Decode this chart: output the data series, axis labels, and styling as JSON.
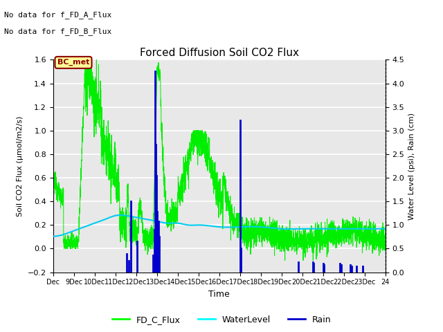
{
  "title": "Forced Diffusion Soil CO2 Flux",
  "xlabel": "Time",
  "ylabel_left": "Soil CO2 Flux (μmol/m2/s)",
  "ylabel_right": "Water Level (psi), Rain (cm)",
  "ylim_left": [
    -0.2,
    1.6
  ],
  "ylim_right": [
    0.0,
    4.5
  ],
  "yticks_left": [
    -0.2,
    0.0,
    0.2,
    0.4,
    0.6,
    0.8,
    1.0,
    1.2,
    1.4,
    1.6
  ],
  "yticks_right": [
    0.0,
    0.5,
    1.0,
    1.5,
    2.0,
    2.5,
    3.0,
    3.5,
    4.0,
    4.5
  ],
  "annotations": [
    "No data for f_FD_A_Flux",
    "No data for f_FD_B_Flux"
  ],
  "bc_met_label": "BC_met",
  "legend_labels": [
    "FD_C_Flux",
    "WaterLevel",
    "Rain"
  ],
  "legend_colors": [
    "#00ff00",
    "#00ffff",
    "#0000cc"
  ],
  "flux_color": "#00ee00",
  "water_color": "#00ccee",
  "rain_color": "#0000cc",
  "bg_color": "#e8e8e8",
  "bc_met_bg": "#ffff99",
  "bc_met_border": "#8b0000",
  "bc_met_text": "#8b0000",
  "n_points": 3000,
  "date_start": 8,
  "date_end": 24,
  "rain_positions": [
    11.55,
    11.65,
    11.75,
    12.05,
    12.82,
    12.86,
    12.9,
    12.94,
    12.98,
    13.02,
    13.08,
    13.12,
    17.0,
    17.05,
    19.82,
    20.5,
    20.55,
    21.0,
    21.05,
    21.82,
    21.87,
    22.32,
    22.37,
    22.62,
    22.92
  ],
  "rain_heights_left": [
    0.13,
    0.08,
    0.5,
    0.22,
    0.12,
    0.3,
    1.42,
    0.9,
    0.68,
    0.43,
    0.36,
    0.25,
    1.07,
    0.17,
    0.07,
    0.07,
    0.06,
    0.06,
    0.05,
    0.06,
    0.05,
    0.05,
    0.04,
    0.04,
    0.04
  ],
  "water_level_left": [
    0.19,
    0.2,
    0.22,
    0.24,
    0.26,
    0.28,
    0.3,
    0.3,
    0.29,
    0.28,
    0.27,
    0.26,
    0.26,
    0.25,
    0.25,
    0.24,
    0.24,
    0.24,
    0.23,
    0.23,
    0.23,
    0.23,
    0.23,
    0.23
  ],
  "water_level_t": [
    8,
    8.5,
    9,
    9.5,
    10,
    10.5,
    11,
    11.5,
    12,
    12.5,
    13,
    13.5,
    14,
    14.5,
    15,
    16,
    17,
    18,
    19,
    20,
    21,
    22,
    23,
    24
  ]
}
